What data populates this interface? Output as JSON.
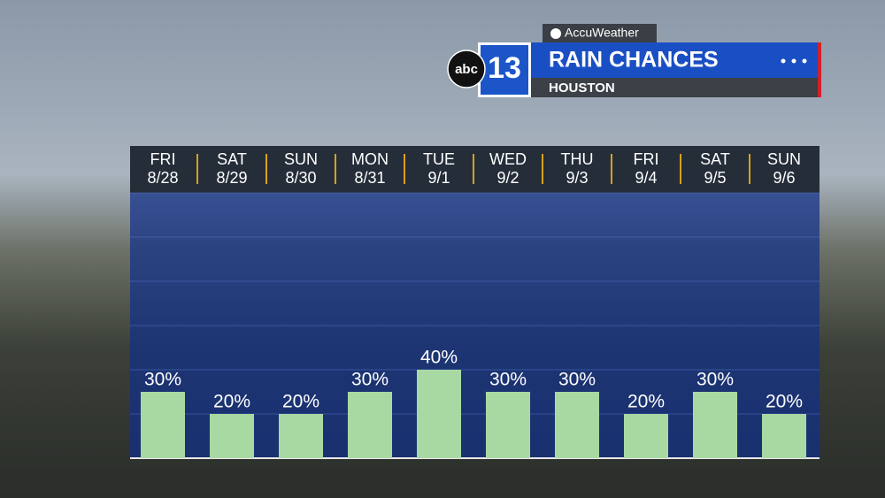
{
  "branding": {
    "provider": "AccuWeather",
    "network": "abc",
    "channel": "13"
  },
  "chart_data": {
    "type": "bar",
    "title": "RAIN CHANCES",
    "subtitle": "HOUSTON",
    "categories": [
      "FRI",
      "SAT",
      "SUN",
      "MON",
      "TUE",
      "WED",
      "THU",
      "FRI",
      "SAT",
      "SUN"
    ],
    "dates": [
      "8/28",
      "8/29",
      "8/30",
      "8/31",
      "9/1",
      "9/2",
      "9/3",
      "9/4",
      "9/5",
      "9/6"
    ],
    "values": [
      30,
      20,
      20,
      30,
      40,
      30,
      30,
      20,
      30,
      20
    ],
    "value_labels": [
      "30%",
      "20%",
      "20%",
      "30%",
      "40%",
      "30%",
      "30%",
      "20%",
      "30%",
      "20%"
    ],
    "color": "#a9d9a3",
    "ylim": [
      0,
      120
    ],
    "yticks": [
      0,
      20,
      40,
      60,
      80,
      100,
      120
    ],
    "grid": true
  }
}
